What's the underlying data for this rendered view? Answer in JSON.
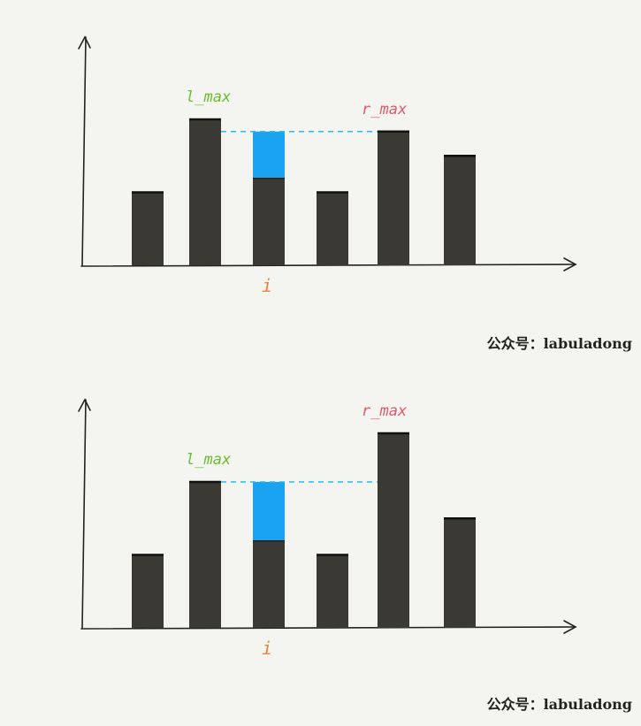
{
  "colors": {
    "background": "#f4f4f1",
    "bar": "#3a3934",
    "water": "#1aa3f1",
    "dash": "#2fb8ea",
    "l_max": "#6abf2e",
    "r_max": "#e05a6a",
    "i": "#e8863b",
    "axis": "#222222"
  },
  "watermark": "公众号：labuladong",
  "panels": [
    {
      "l_max_label": "l_max",
      "r_max_label": "r_max",
      "i_label": "i",
      "heights": [
        3,
        6,
        3.6,
        3,
        5.5,
        4.5
      ],
      "l_max_index": 1,
      "r_max_index": 4,
      "i_index": 2
    },
    {
      "l_max_label": "l_max",
      "r_max_label": "r_max",
      "i_label": "i",
      "heights": [
        3,
        6,
        3.6,
        3,
        8,
        4.5
      ],
      "l_max_index": 1,
      "r_max_index": 4,
      "i_index": 2
    }
  ]
}
